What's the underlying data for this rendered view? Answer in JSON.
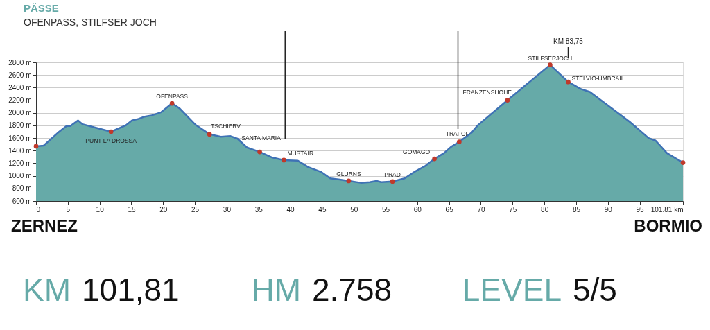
{
  "chart_data": {
    "type": "area",
    "title": "PÄSSE",
    "subtitle": "OFENPASS, STILFSER JOCH",
    "x": [
      0,
      1.2,
      3.4,
      4.8,
      5.4,
      6.6,
      7.3,
      9.5,
      11.8,
      14.1,
      15.1,
      16.0,
      17.1,
      18.2,
      19.7,
      21.4,
      22.6,
      25.1,
      27.3,
      29.1,
      30.6,
      31.7,
      33.2,
      35.2,
      37.2,
      39.0,
      41.2,
      42.8,
      44.9,
      46.3,
      47.8,
      49.2,
      51.1,
      52.5,
      53.6,
      54.3,
      56.1,
      58.0,
      59.5,
      61.3,
      62.7,
      64.2,
      65.3,
      66.6,
      68.6,
      69.5,
      74.2,
      80.9,
      83.75,
      85.7,
      87.2,
      89.7,
      93.4,
      96.4,
      97.5,
      99.3,
      100.8,
      101.81
    ],
    "series": [
      {
        "color": "#66aaa8",
        "values": [
          1470,
          1480,
          1680,
          1790,
          1790,
          1880,
          1820,
          1760,
          1700,
          1800,
          1880,
          1900,
          1940,
          1960,
          2010,
          2150,
          2070,
          1810,
          1660,
          1620,
          1630,
          1590,
          1450,
          1380,
          1290,
          1250,
          1240,
          1140,
          1060,
          960,
          940,
          920,
          890,
          900,
          920,
          900,
          910,
          960,
          1060,
          1160,
          1270,
          1360,
          1460,
          1540,
          1690,
          1800,
          2200,
          2760,
          2490,
          2380,
          2330,
          2140,
          1860,
          1600,
          1560,
          1360,
          1270,
          1210
        ]
      },
      {
        "type": "scatter",
        "color": "#c0392b",
        "x": [
          0,
          11.8,
          21.4,
          27.3,
          35.2,
          39.0,
          49.2,
          56.1,
          62.7,
          66.6,
          74.2,
          80.9,
          83.75,
          101.81
        ],
        "values": [
          1470,
          1700,
          2150,
          1660,
          1380,
          1250,
          920,
          910,
          1270,
          1540,
          2200,
          2760,
          2490,
          1210
        ]
      }
    ],
    "xlim": [
      0,
      101.81
    ],
    "xticks": [
      0,
      5,
      10,
      15,
      20,
      25,
      30,
      35,
      40,
      45,
      50,
      55,
      60,
      65,
      70,
      75,
      80,
      85,
      90,
      95,
      {
        "value": 101.81,
        "label": "101.81 km"
      }
    ],
    "ylim": [
      600,
      2800
    ],
    "yticks": [
      {
        "value": 600,
        "label": "600 m"
      },
      {
        "value": 800,
        "label": "800 m"
      },
      {
        "value": 1000,
        "label": "1000 m"
      },
      {
        "value": 1200,
        "label": "1200 m"
      },
      {
        "value": 1400,
        "label": "1400 m"
      },
      {
        "value": 1600,
        "label": "1600 m"
      },
      {
        "value": 1800,
        "label": "1800 m"
      },
      {
        "value": 2000,
        "label": "2000 m"
      },
      {
        "value": 2200,
        "label": "2200 m"
      },
      {
        "value": 2400,
        "label": "2400 m"
      },
      {
        "value": 2600,
        "label": "2600 m"
      },
      {
        "value": 2800,
        "label": "2800 m"
      }
    ],
    "grid": "y",
    "ref_lines": [
      {
        "axis": "x",
        "value": 39.2,
        "label": null,
        "color": "#222222"
      },
      {
        "axis": "x",
        "value": 66.4,
        "label": null,
        "color": "#222222"
      },
      {
        "axis": "x",
        "value": 83.75,
        "label": "KM 83,75",
        "color": "#222222"
      }
    ],
    "annotations": [
      {
        "text": "PUNT LA DROSSA",
        "x": 11.8,
        "y": 1700
      },
      {
        "text": "OFENPASS",
        "x": 21.4,
        "y": 2150
      },
      {
        "text": "TSCHIERV",
        "x": 27.3,
        "y": 1660
      },
      {
        "text": "SANTA MARIA",
        "x": 35.2,
        "y": 1380
      },
      {
        "text": "MÜSTAIR",
        "x": 39.0,
        "y": 1250
      },
      {
        "text": "GLURNS",
        "x": 49.2,
        "y": 920
      },
      {
        "text": "PRAD",
        "x": 56.1,
        "y": 910
      },
      {
        "text": "GOMAGOI",
        "x": 62.7,
        "y": 1270
      },
      {
        "text": "TRAFOI",
        "x": 66.6,
        "y": 1540
      },
      {
        "text": "FRANZENSHÖHE",
        "x": 74.2,
        "y": 2200
      },
      {
        "text": "STILFSERJOCH",
        "x": 80.9,
        "y": 2760
      },
      {
        "text": "STELVIO-UMBRAIL",
        "x": 83.75,
        "y": 2490
      },
      "ZERNEZ",
      "BORMIO",
      "KM 101,81",
      "HM 2.758",
      "LEVEL 5/5"
    ]
  }
}
